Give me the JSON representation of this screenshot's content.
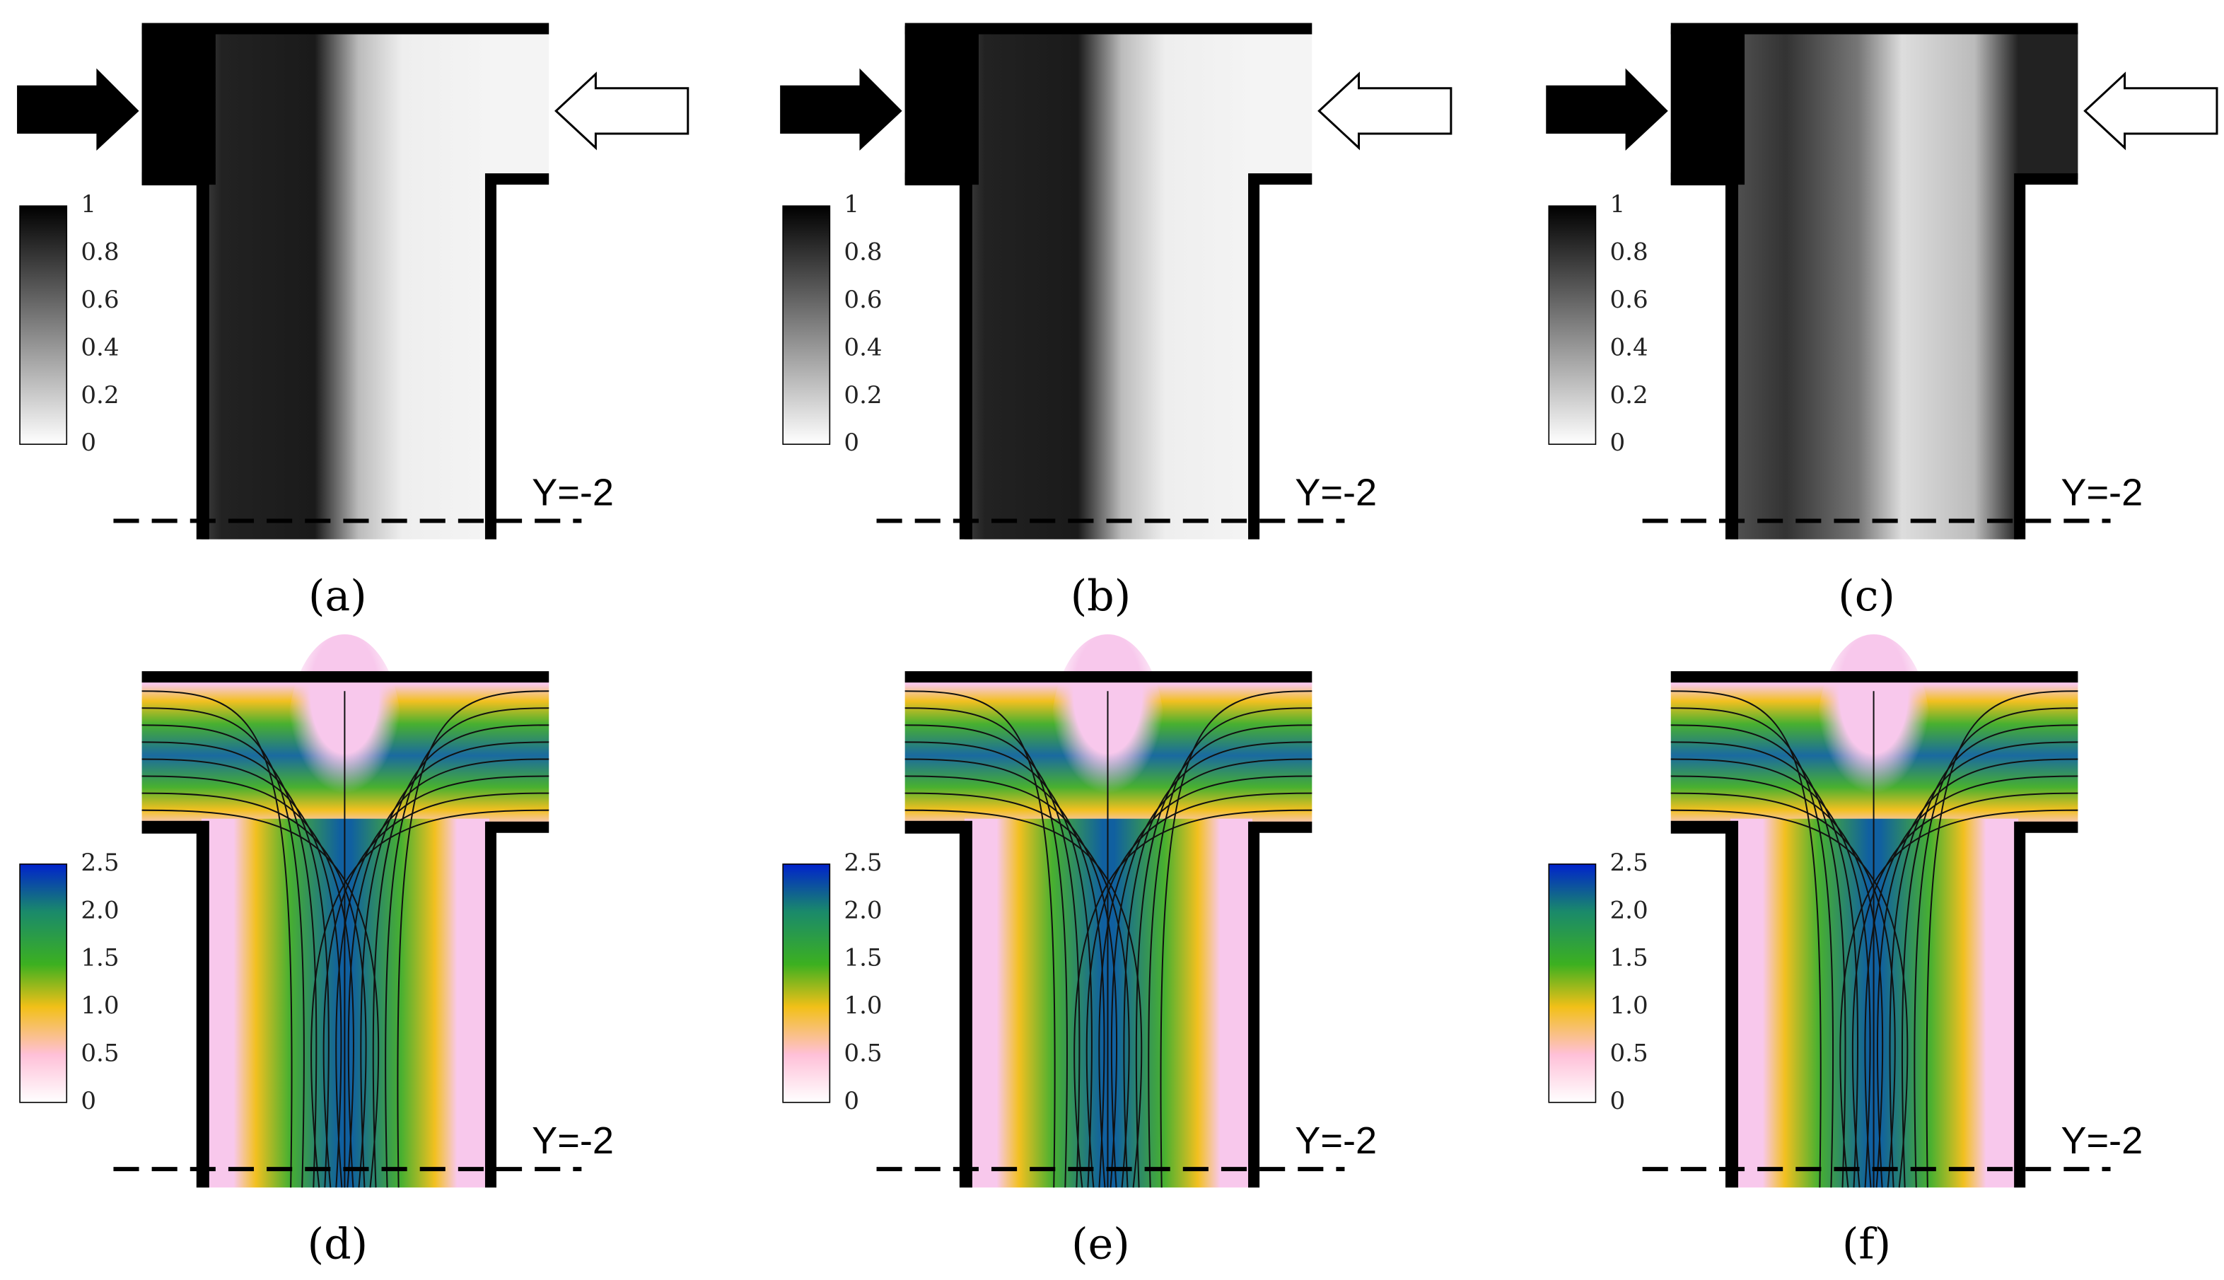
{
  "panels": [
    {
      "label": "(a)",
      "line_label": "Y=-2",
      "colorbar_ticks": [
        "1",
        "0.8",
        "0.6",
        "0.4",
        "0.2",
        "0"
      ]
    },
    {
      "label": "(b)",
      "line_label": "Y=-2",
      "colorbar_ticks": [
        "1",
        "0.8",
        "0.6",
        "0.4",
        "0.2",
        "0"
      ]
    },
    {
      "label": "(c)",
      "line_label": "Y=-2",
      "colorbar_ticks": [
        "1",
        "0.8",
        "0.6",
        "0.4",
        "0.2",
        "0"
      ]
    },
    {
      "label": "(d)",
      "line_label": "Y=-2",
      "colorbar_ticks": [
        "2.5",
        "2.0",
        "1.5",
        "1.0",
        "0.5",
        "0"
      ]
    },
    {
      "label": "(e)",
      "line_label": "Y=-2",
      "colorbar_ticks": [
        "2.5",
        "2.0",
        "1.5",
        "1.0",
        "0.5",
        "0"
      ]
    },
    {
      "label": "(f)",
      "line_label": "Y=-2",
      "colorbar_ticks": [
        "2.5",
        "2.0",
        "1.5",
        "1.0",
        "0.5",
        "0"
      ]
    }
  ]
}
